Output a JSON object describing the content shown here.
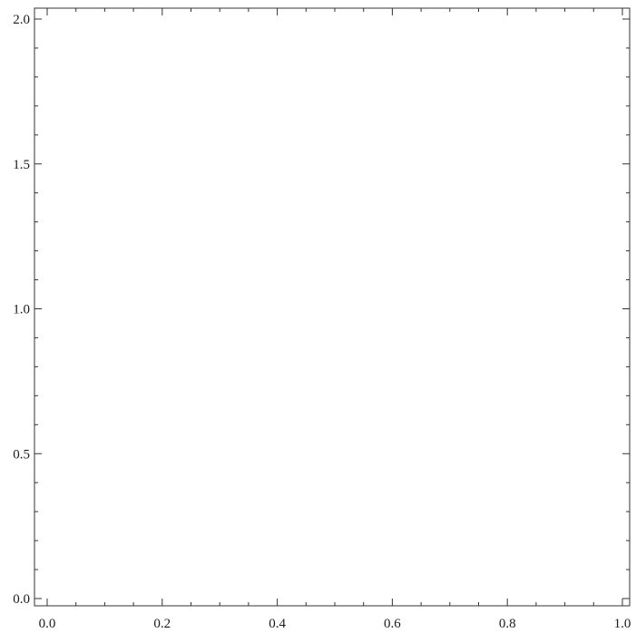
{
  "chart_data": {
    "type": "line",
    "title": "",
    "xlabel": "",
    "ylabel": "",
    "xlim": [
      0.0,
      1.0
    ],
    "ylim": [
      0.0,
      2.0
    ],
    "x_major_ticks": [
      0.0,
      0.2,
      0.4,
      0.6,
      0.8,
      1.0
    ],
    "x_tick_labels": [
      "0.0",
      "0.2",
      "0.4",
      "0.6",
      "0.8",
      "1.0"
    ],
    "x_minor_step": 0.05,
    "y_major_ticks": [
      0.0,
      0.5,
      1.0,
      1.5,
      2.0
    ],
    "y_tick_labels": [
      "0.0",
      "0.5",
      "1.0",
      "1.5",
      "2.0"
    ],
    "y_minor_step": 0.1,
    "grid": false,
    "series": []
  }
}
